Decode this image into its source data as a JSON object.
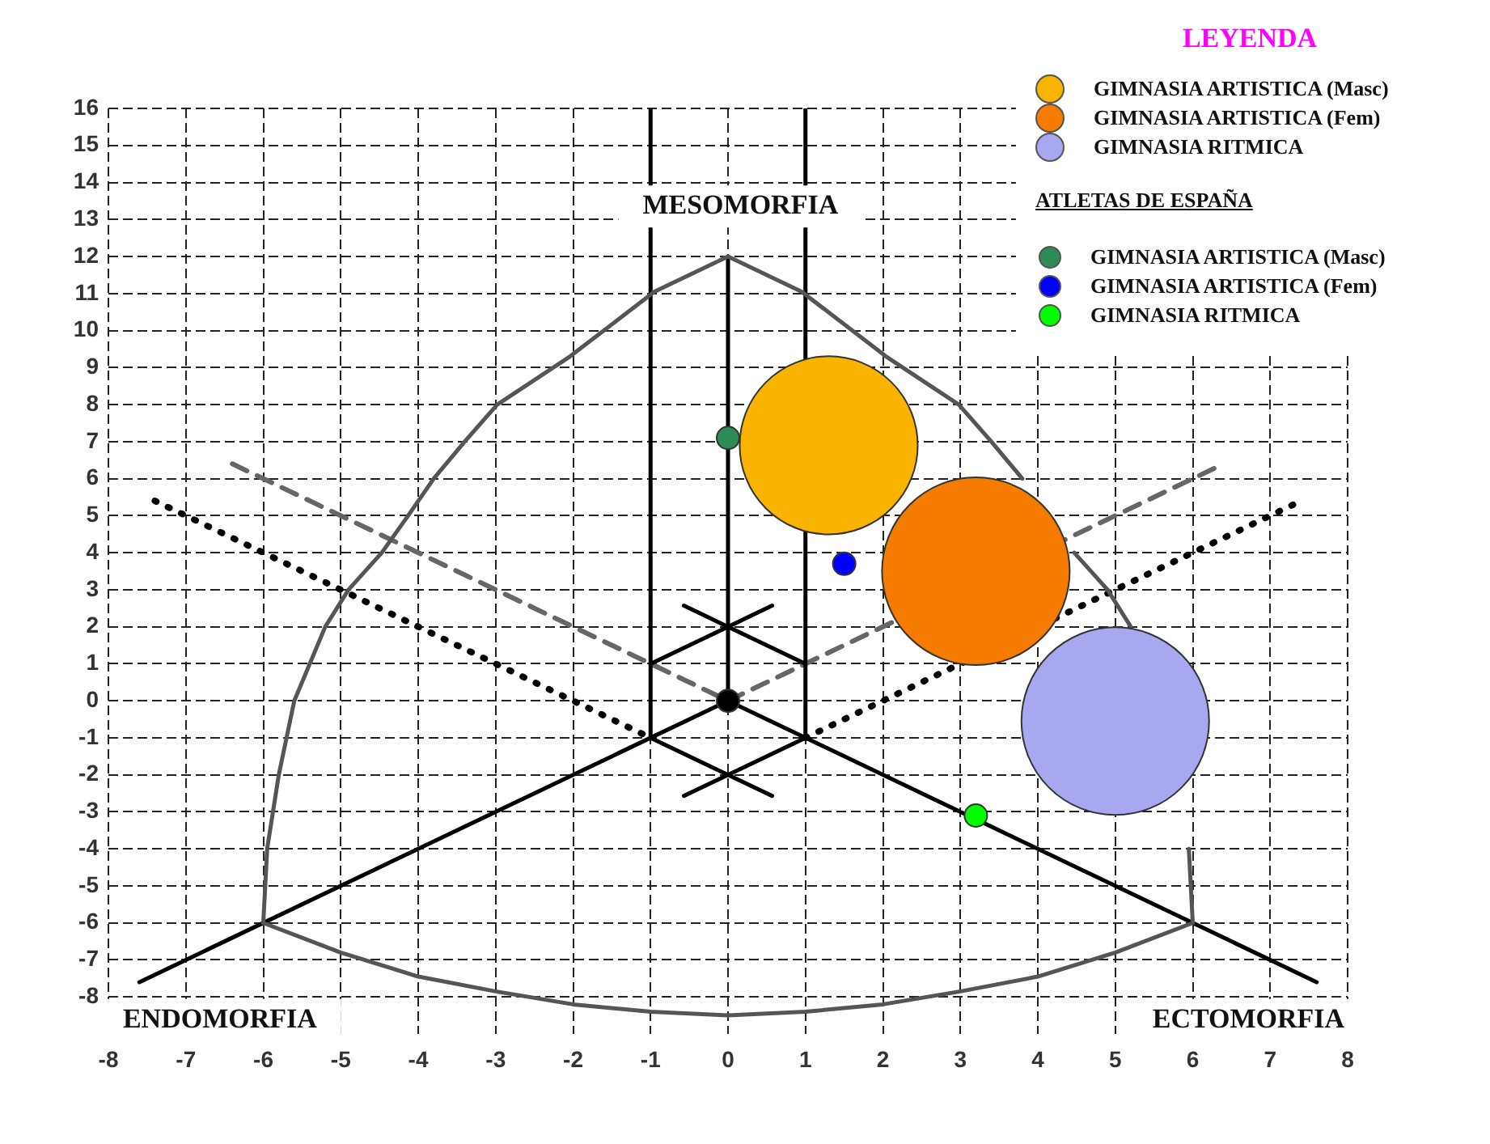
{
  "chart_data": {
    "type": "scatter",
    "legend_title": "LEYENDA",
    "legend": "top right",
    "grid": true,
    "marker": "circle",
    "xlim": [
      -8,
      8
    ],
    "ylim": [
      -9,
      16
    ],
    "xticks": [
      -8,
      -7,
      -6,
      -5,
      -4,
      -3,
      -2,
      -1,
      0,
      1,
      2,
      3,
      4,
      5,
      6,
      7,
      8
    ],
    "yticks": [
      -8,
      -7,
      -6,
      -5,
      -4,
      -3,
      -2,
      -1,
      0,
      1,
      2,
      3,
      4,
      5,
      6,
      7,
      8,
      9,
      10,
      11,
      12,
      13,
      14,
      15,
      16
    ],
    "annotations": [
      "MESOMORFIA",
      "ENDOMORFIA",
      "ECTOMORFIA",
      "ATLETAS DE ESPAÑA"
    ],
    "series": [
      {
        "type": "line",
        "color": "#555555",
        "line_style": "solid",
        "marker": "none",
        "x": [
          0,
          -0.95,
          -2.04,
          -2.98,
          -3.4,
          -3.8,
          -4.13,
          -4.47,
          -4.9,
          -5.2,
          -5.6,
          -5.8,
          -5.95,
          -6
        ],
        "values": [
          12,
          11.05,
          9.3,
          8,
          7,
          6,
          5,
          4,
          3,
          2,
          0,
          -2,
          -4,
          -6
        ]
      },
      {
        "type": "line",
        "color": "#555555",
        "line_style": "solid",
        "marker": "none",
        "x": [
          0,
          0.95,
          2.04,
          2.98,
          3.4,
          3.8,
          4.13,
          4.47,
          4.9,
          5.2,
          5.6,
          5.8,
          5.95,
          6
        ],
        "values": [
          12,
          11.05,
          9.3,
          8,
          7,
          6,
          null,
          4,
          3,
          2,
          null,
          null,
          -4,
          -6
        ]
      },
      {
        "type": "line",
        "color": "#555555",
        "line_style": "solid",
        "marker": "none",
        "x": [
          -6,
          -5,
          -4,
          -3,
          -2,
          -1,
          0,
          1,
          2,
          3,
          4,
          5,
          6
        ],
        "values": [
          -6,
          -6.8,
          -7.45,
          -7.85,
          -8.2,
          -8.4,
          -8.5,
          -8.4,
          -8.2,
          -7.85,
          -7.45,
          -6.8,
          -6
        ]
      },
      {
        "type": "line",
        "color": "#000000",
        "line_style": "solid",
        "marker": "none",
        "x": [
          0,
          0
        ],
        "values": [
          0,
          12
        ]
      },
      {
        "type": "line",
        "color": "#000000",
        "line_style": "solid",
        "marker": "none",
        "x": [
          0,
          -7.6
        ],
        "values": [
          0,
          -7.6
        ]
      },
      {
        "type": "line",
        "color": "#000000",
        "line_style": "solid",
        "marker": "none",
        "x": [
          0,
          7.6
        ],
        "values": [
          0,
          -7.6
        ]
      },
      {
        "type": "line",
        "color": "#000000",
        "line_style": "solid",
        "marker": "none",
        "x": [
          -1,
          -1
        ],
        "values": [
          -1,
          16
        ]
      },
      {
        "type": "line",
        "color": "#000000",
        "line_style": "solid",
        "marker": "none",
        "x": [
          1,
          1
        ],
        "values": [
          -1,
          16
        ]
      },
      {
        "type": "line",
        "color": "#000000",
        "line_style": "solid",
        "marker": "none",
        "x": [
          -1,
          0,
          0.57
        ],
        "values": [
          1,
          2,
          2.57
        ]
      },
      {
        "type": "line",
        "color": "#000000",
        "line_style": "solid",
        "marker": "none",
        "x": [
          -0.57,
          0,
          1
        ],
        "values": [
          2.57,
          2,
          1
        ]
      },
      {
        "type": "line",
        "color": "#000000",
        "line_style": "solid",
        "marker": "none",
        "x": [
          -1,
          0,
          0.57
        ],
        "values": [
          -1,
          -2,
          -2.57
        ]
      },
      {
        "type": "line",
        "color": "#000000",
        "line_style": "solid",
        "marker": "none",
        "x": [
          -0.57,
          0,
          1
        ],
        "values": [
          -2.57,
          -2,
          -1
        ]
      },
      {
        "type": "line",
        "color": "#666666",
        "line_style": "dashed",
        "marker": "none",
        "x": [
          -6.4,
          0
        ],
        "values": [
          6.4,
          0
        ]
      },
      {
        "type": "line",
        "color": "#666666",
        "line_style": "dashed",
        "marker": "none",
        "x": [
          0,
          6.4
        ],
        "values": [
          0,
          6.4
        ]
      },
      {
        "type": "line",
        "color": "#000000",
        "line_style": "dotted",
        "marker": "none",
        "x": [
          -7.4,
          -1
        ],
        "values": [
          5.4,
          -1
        ]
      },
      {
        "type": "line",
        "color": "#000000",
        "line_style": "dotted",
        "marker": "none",
        "x": [
          1,
          7.4
        ],
        "values": [
          -1,
          5.4
        ]
      },
      {
        "color": "#000000",
        "x": [
          0
        ],
        "values": [
          0
        ]
      },
      {
        "type": "bubble",
        "name": "GIMNASIA ARTISTICA (Masc)",
        "color": "#f8b400",
        "x": [
          1.3
        ],
        "values": [
          6.9
        ],
        "sizes": [
          0.9
        ]
      },
      {
        "type": "bubble",
        "name": "GIMNASIA ARTISTICA (Fem)",
        "color": "#f57c00",
        "x": [
          3.2
        ],
        "values": [
          3.5
        ],
        "sizes": [
          1
        ]
      },
      {
        "type": "bubble",
        "name": "GIMNASIA RITMICA",
        "color": "#a8a8f0",
        "x": [
          5.0
        ],
        "values": [
          -0.55
        ],
        "sizes": [
          1
        ]
      },
      {
        "name": "GIMNASIA ARTISTICA (Masc)",
        "color": "#2e8b57",
        "x": [
          0
        ],
        "values": [
          7.1
        ]
      },
      {
        "name": "GIMNASIA ARTISTICA (Fem)",
        "color": "#0000ff",
        "x": [
          1.5
        ],
        "values": [
          3.7
        ]
      },
      {
        "name": "GIMNASIA RITMICA",
        "color": "#00ff00",
        "x": [
          3.2
        ],
        "values": [
          -3.1
        ]
      }
    ]
  }
}
